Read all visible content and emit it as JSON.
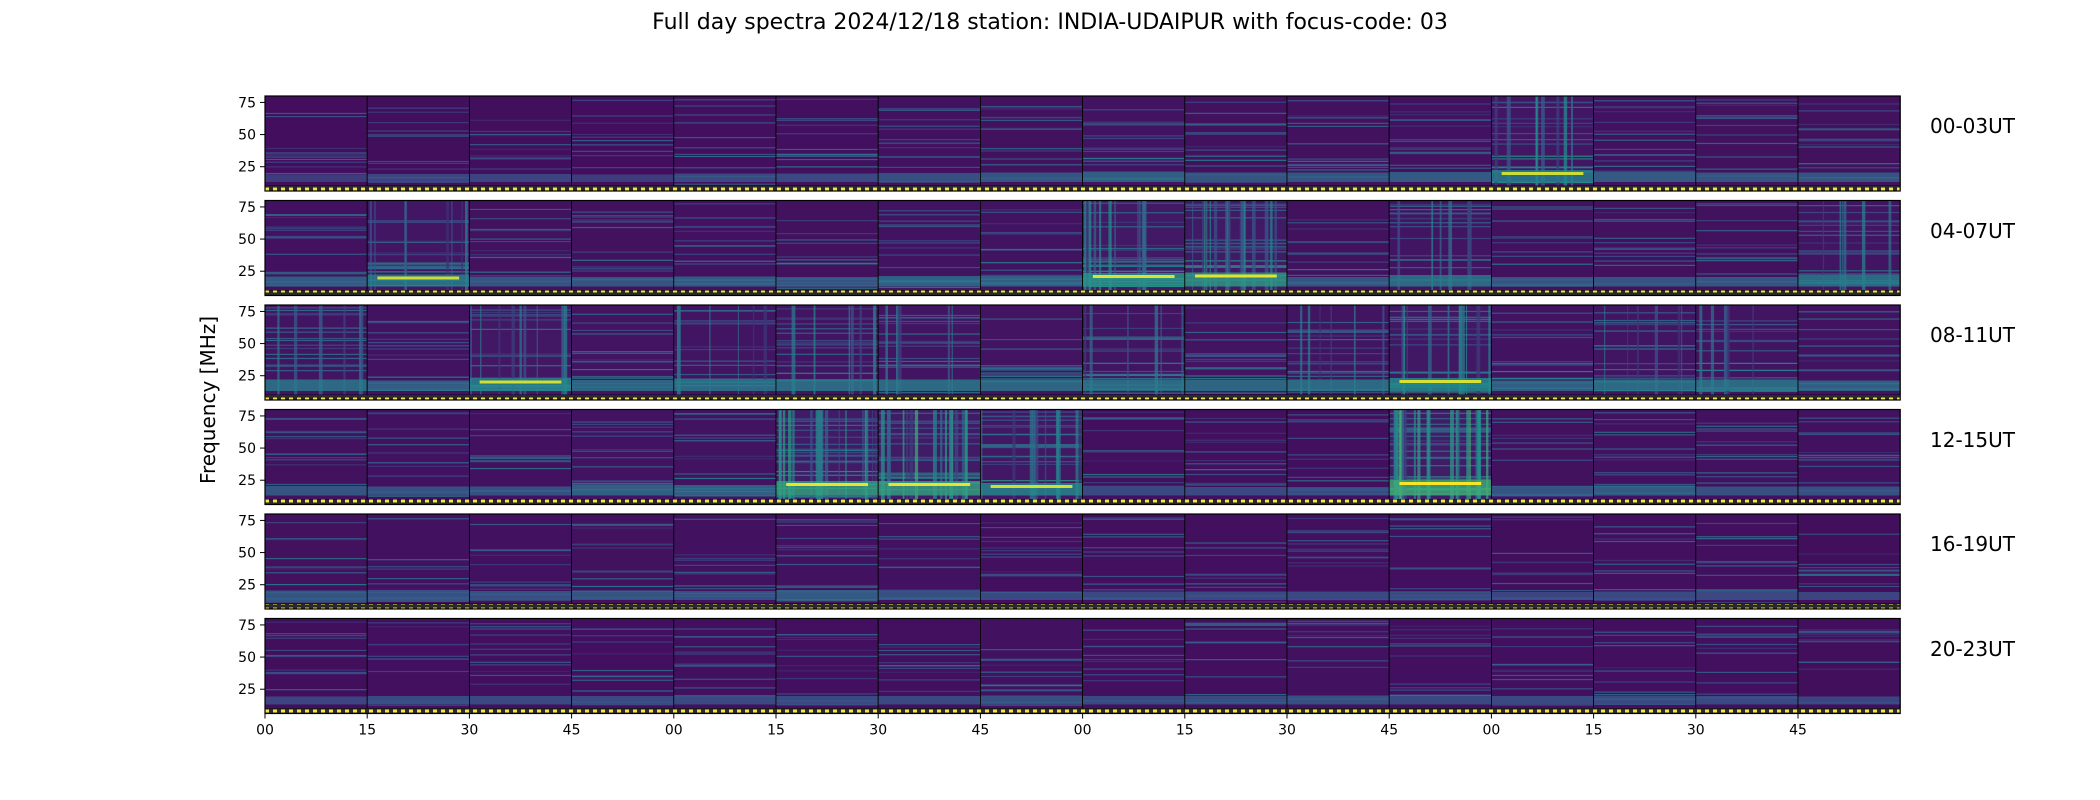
{
  "chart_data": {
    "type": "heatmap",
    "title": "Full day spectra 2024/12/18 station: INDIA-UDAIPUR with focus-code: 03",
    "ylabel": "Frequency [MHz]",
    "xlabel": "",
    "y_ticks": [
      "75",
      "50",
      "25"
    ],
    "x_ticks": [
      "00",
      "15",
      "30",
      "45",
      "00",
      "15",
      "30",
      "45",
      "00",
      "15",
      "30",
      "45",
      "00",
      "15",
      "30",
      "45"
    ],
    "colormap": "viridis",
    "panels_per_row": 16,
    "panel_minutes": 15,
    "rows": [
      {
        "label": "00-03UT",
        "activity": [
          0.15,
          0.2,
          0.2,
          0.15,
          0.25,
          0.25,
          0.3,
          0.35,
          0.45,
          0.35,
          0.35,
          0.4,
          0.6,
          0.4,
          0.35,
          0.35
        ]
      },
      {
        "label": "04-07UT",
        "activity": [
          0.4,
          0.6,
          0.35,
          0.35,
          0.4,
          0.35,
          0.45,
          0.45,
          0.75,
          0.8,
          0.35,
          0.55,
          0.35,
          0.35,
          0.35,
          0.55
        ]
      },
      {
        "label": "08-11UT",
        "activity": [
          0.55,
          0.45,
          0.65,
          0.5,
          0.55,
          0.55,
          0.55,
          0.5,
          0.55,
          0.5,
          0.55,
          0.7,
          0.45,
          0.55,
          0.55,
          0.45
        ]
      },
      {
        "label": "12-15UT",
        "activity": [
          0.35,
          0.3,
          0.3,
          0.45,
          0.45,
          0.85,
          0.85,
          0.65,
          0.25,
          0.25,
          0.25,
          0.95,
          0.35,
          0.4,
          0.3,
          0.3
        ]
      },
      {
        "label": "16-19UT",
        "activity": [
          0.35,
          0.3,
          0.3,
          0.35,
          0.3,
          0.4,
          0.3,
          0.25,
          0.25,
          0.25,
          0.25,
          0.25,
          0.2,
          0.25,
          0.25,
          0.2
        ]
      },
      {
        "label": "20-23UT",
        "activity": [
          0.2,
          0.25,
          0.25,
          0.25,
          0.25,
          0.25,
          0.25,
          0.3,
          0.25,
          0.25,
          0.3,
          0.25,
          0.25,
          0.25,
          0.25,
          0.2
        ]
      }
    ]
  }
}
